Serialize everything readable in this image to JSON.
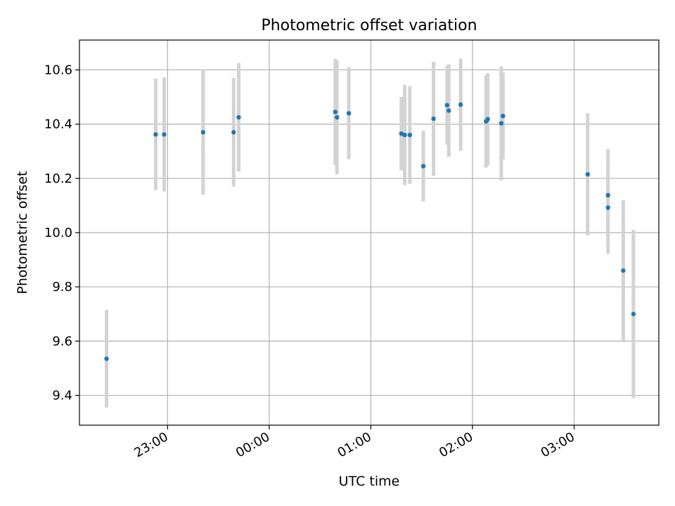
{
  "chart_data": {
    "type": "scatter",
    "title": "Photometric offset variation",
    "xlabel": "UTC time",
    "ylabel": "Photometric offset",
    "x_ticks": [
      "23:00",
      "00:00",
      "01:00",
      "02:00",
      "03:00"
    ],
    "y_ticks": [
      "9.4",
      "9.6",
      "9.8",
      "10.0",
      "10.2",
      "10.4",
      "10.6"
    ],
    "x_axis_type": "time",
    "xlim": [
      "22:08",
      "03:50"
    ],
    "ylim": [
      9.29,
      10.71
    ],
    "grid": true,
    "colors": {
      "points": "#1f77b4",
      "errorbars": "#d3d3d3",
      "grid": "#b0b0b0"
    },
    "series": [
      {
        "points": [
          {
            "t": "22:24",
            "y": 9.535,
            "err": 0.18
          },
          {
            "t": "22:53",
            "y": 10.362,
            "err": 0.205
          },
          {
            "t": "22:58",
            "y": 10.362,
            "err": 0.21
          },
          {
            "t": "23:21",
            "y": 10.37,
            "err": 0.23
          },
          {
            "t": "23:39",
            "y": 10.37,
            "err": 0.2
          },
          {
            "t": "23:42",
            "y": 10.425,
            "err": 0.2
          },
          {
            "t": "00:39",
            "y": 10.445,
            "err": 0.195
          },
          {
            "t": "00:40",
            "y": 10.425,
            "err": 0.21
          },
          {
            "t": "00:47",
            "y": 10.44,
            "err": 0.17
          },
          {
            "t": "01:18",
            "y": 10.365,
            "err": 0.135
          },
          {
            "t": "01:20",
            "y": 10.36,
            "err": 0.185
          },
          {
            "t": "01:23",
            "y": 10.36,
            "err": 0.18
          },
          {
            "t": "01:31",
            "y": 10.245,
            "err": 0.13
          },
          {
            "t": "01:37",
            "y": 10.42,
            "err": 0.21
          },
          {
            "t": "01:45",
            "y": 10.47,
            "err": 0.145
          },
          {
            "t": "01:46",
            "y": 10.45,
            "err": 0.17
          },
          {
            "t": "01:53",
            "y": 10.472,
            "err": 0.17
          },
          {
            "t": "02:08",
            "y": 10.41,
            "err": 0.17
          },
          {
            "t": "02:09",
            "y": 10.418,
            "err": 0.17
          },
          {
            "t": "02:17",
            "y": 10.403,
            "err": 0.21
          },
          {
            "t": "02:18",
            "y": 10.43,
            "err": 0.16
          },
          {
            "t": "03:08",
            "y": 10.215,
            "err": 0.225
          },
          {
            "t": "03:20",
            "y": 10.138,
            "err": 0.17
          },
          {
            "t": "03:20",
            "y": 10.092,
            "err": 0.17
          },
          {
            "t": "03:29",
            "y": 9.86,
            "err": 0.26
          },
          {
            "t": "03:35",
            "y": 9.7,
            "err": 0.31
          }
        ]
      }
    ]
  }
}
